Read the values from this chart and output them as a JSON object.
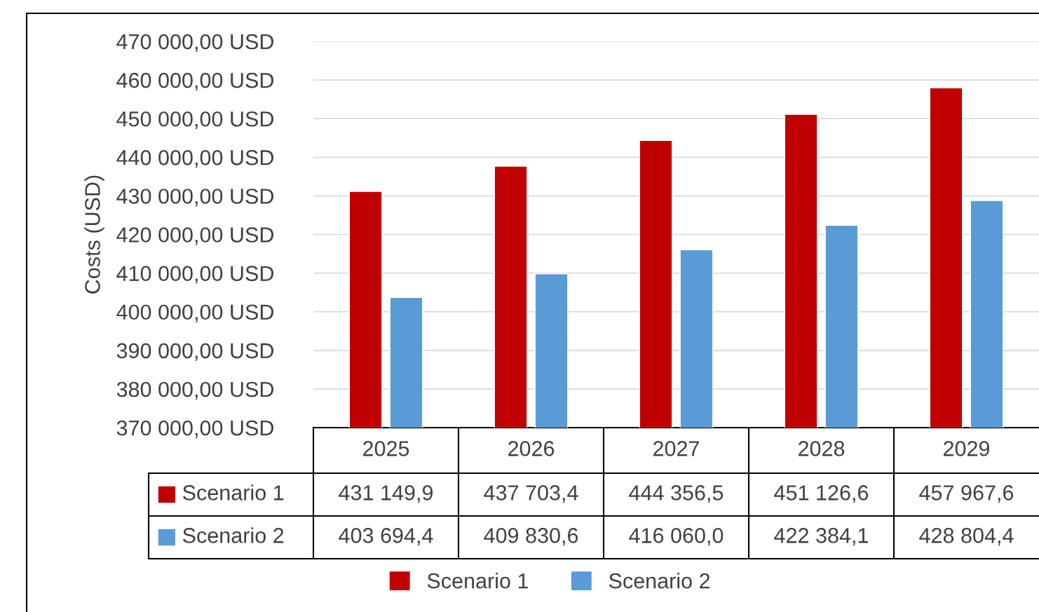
{
  "chart_data": {
    "type": "bar",
    "ylabel": "Costs (USD)",
    "categories": [
      "2025",
      "2026",
      "2027",
      "2028",
      "2029"
    ],
    "series": [
      {
        "name": "Scenario 1",
        "color": "#c00000",
        "values": [
          431149.9,
          437703.4,
          444356.5,
          451126.6,
          457967.6
        ],
        "value_labels": [
          "431 149,9",
          "437 703,4",
          "444 356,5",
          "451 126,6",
          "457 967,6"
        ]
      },
      {
        "name": "Scenario 2",
        "color": "#5b9bd5",
        "values": [
          403694.4,
          409830.6,
          416060.0,
          422384.1,
          428804.4
        ],
        "value_labels": [
          "403 694,4",
          "409 830,6",
          "416 060,0",
          "422 384,1",
          "428 804,4"
        ]
      }
    ],
    "ylim": [
      370000,
      470000
    ],
    "yticks": [
      {
        "value": 370000,
        "label": "370 000,00 USD"
      },
      {
        "value": 380000,
        "label": "380 000,00 USD"
      },
      {
        "value": 390000,
        "label": "390 000,00 USD"
      },
      {
        "value": 400000,
        "label": "400 000,00 USD"
      },
      {
        "value": 410000,
        "label": "410 000,00 USD"
      },
      {
        "value": 420000,
        "label": "420 000,00 USD"
      },
      {
        "value": 430000,
        "label": "430 000,00 USD"
      },
      {
        "value": 440000,
        "label": "440 000,00 USD"
      },
      {
        "value": 450000,
        "label": "450 000,00 USD"
      },
      {
        "value": 460000,
        "label": "460 000,00 USD"
      },
      {
        "value": 470000,
        "label": "470 000,00 USD"
      }
    ],
    "grid": "y",
    "legend": "bottom"
  }
}
